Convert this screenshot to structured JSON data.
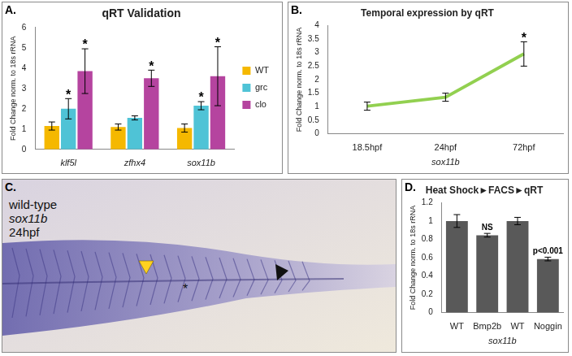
{
  "chart_data": [
    {
      "panel": "A.",
      "type": "bar",
      "title": "qRT Validation",
      "y_label": "Fold Change norm. to 18s rRNA",
      "categories": [
        "klf5l",
        "zfhx4",
        "sox11b"
      ],
      "series": [
        {
          "name": "WT",
          "color": "#f5b800",
          "values": [
            1.15,
            1.1,
            1.05
          ],
          "errors": [
            0.2,
            0.15,
            0.2
          ]
        },
        {
          "name": "grc",
          "color": "#4fc3d6",
          "values": [
            2.0,
            1.55,
            2.15
          ],
          "errors": [
            0.5,
            0.1,
            0.2
          ],
          "annotations": [
            "*",
            null,
            "*"
          ]
        },
        {
          "name": "clo",
          "color": "#b5449f",
          "values": [
            3.85,
            3.5,
            3.6
          ],
          "errors": [
            1.1,
            0.4,
            1.45
          ],
          "annotations": [
            "*",
            "*",
            "*"
          ]
        }
      ],
      "ylim": [
        0,
        6
      ],
      "yticks": [
        0,
        1,
        2,
        3,
        4,
        5,
        6
      ],
      "grid": false,
      "legend": "right"
    },
    {
      "panel": "B.",
      "type": "line",
      "title": "Temporal expression by qRT",
      "y_label": "Fold Change norm. to 18s rRNA",
      "x_label": "sox11b",
      "categories": [
        "18.5hpf",
        "24hpf",
        "72hpf"
      ],
      "values": [
        1.02,
        1.35,
        2.95
      ],
      "errors": [
        0.15,
        0.15,
        0.45
      ],
      "annotations": [
        null,
        null,
        "*"
      ],
      "color": "#92d050",
      "ylim": [
        0,
        4
      ],
      "yticks": [
        0,
        0.5,
        1,
        1.5,
        2,
        2.5,
        3,
        3.5,
        4
      ],
      "grid": false
    },
    {
      "panel": "D.",
      "type": "bar",
      "title": "Heat Shock►FACS►qRT",
      "y_label": "Fold Change norm. to 18s rRNA",
      "x_label": "sox11b",
      "categories": [
        "WT",
        "Bmp2b",
        "WT",
        "Noggin"
      ],
      "values": [
        1.0,
        0.845,
        1.0,
        0.585
      ],
      "errors": [
        0.07,
        0.02,
        0.04,
        0.02
      ],
      "annotations": [
        null,
        "NS",
        null,
        "p<0.001"
      ],
      "color": "#595959",
      "ylim": [
        0,
        1.2
      ],
      "yticks": [
        0,
        0.2,
        0.4,
        0.6,
        0.8,
        1,
        1.2
      ],
      "grid": false
    }
  ],
  "image_panel": {
    "panel": "C.",
    "texts": [
      "wild-type",
      "sox11b",
      "24hpf"
    ],
    "annotation": "*"
  }
}
